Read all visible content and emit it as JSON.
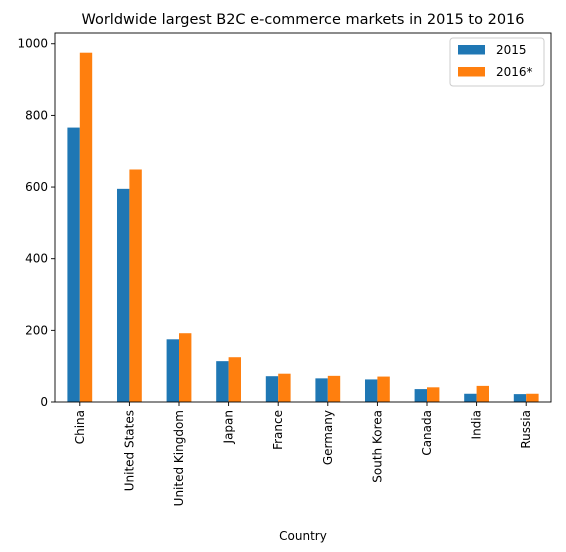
{
  "chart_data": {
    "type": "bar",
    "title": "Worldwide largest B2C e-commerce markets in 2015 to 2016",
    "xlabel": "Country",
    "ylabel": "",
    "categories": [
      "China",
      "United States",
      "United Kingdom",
      "Japan",
      "France",
      "Germany",
      "South Korea",
      "Canada",
      "India",
      "Russia"
    ],
    "series": [
      {
        "name": "2015",
        "color": "#1f77b4",
        "values": [
          766,
          595,
          175,
          114,
          72,
          66,
          63,
          36,
          23,
          22
        ]
      },
      {
        "name": "2016*",
        "color": "#ff7f0e",
        "values": [
          975,
          649,
          192,
          125,
          79,
          73,
          71,
          41,
          45,
          23
        ]
      }
    ],
    "ylim": [
      0,
      1030
    ],
    "yticks": [
      0,
      200,
      400,
      600,
      800,
      1000
    ],
    "grid": false,
    "legend": "top-right"
  }
}
